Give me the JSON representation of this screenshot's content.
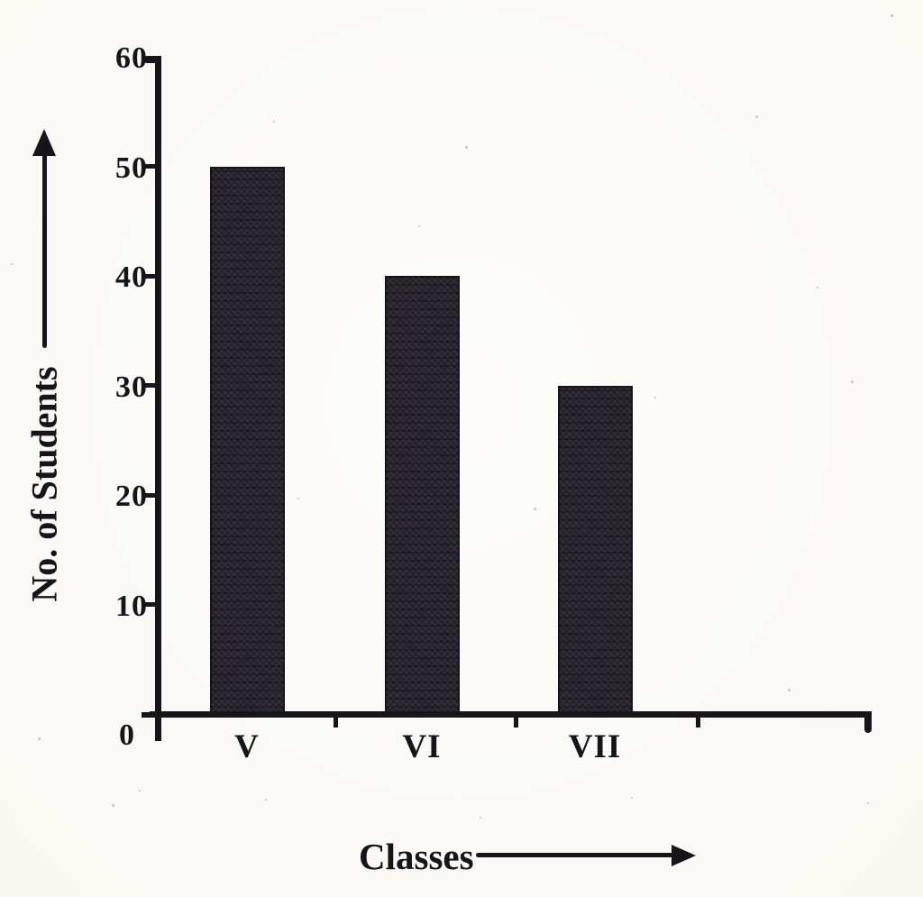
{
  "chart_data": {
    "type": "bar",
    "categories": [
      "V",
      "VI",
      "VII"
    ],
    "values": [
      50,
      40,
      30
    ],
    "title": "",
    "xlabel": "Classes",
    "ylabel": "No. of Students",
    "ylim": [
      0,
      60
    ],
    "yticks": [
      0,
      10,
      20,
      30,
      40,
      50,
      60
    ],
    "grid": false,
    "legend": false,
    "bar_color": "#242129",
    "axis_color": "#17151a",
    "background_color": "#fbfaf6"
  }
}
